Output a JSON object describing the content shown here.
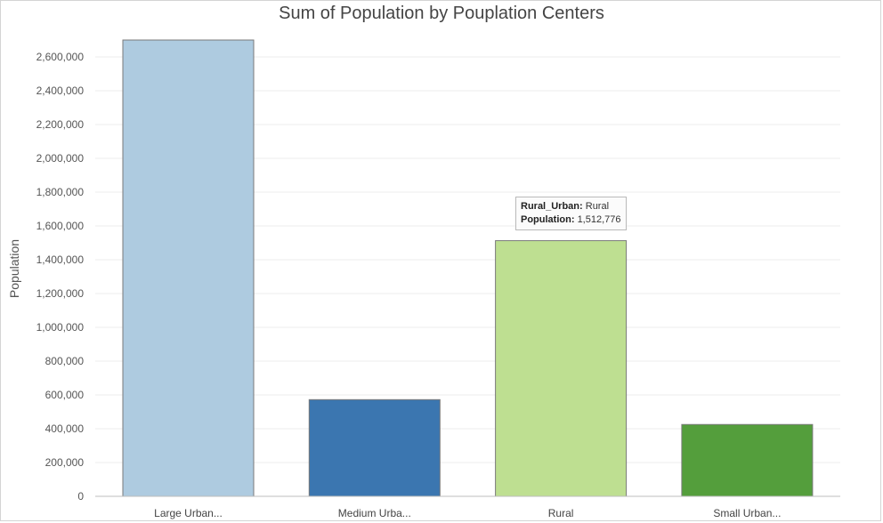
{
  "chart_data": {
    "type": "bar",
    "title": "Sum of Population by Pouplation Centers",
    "xlabel": "",
    "ylabel": "Population",
    "categories": [
      "Large Urban...",
      "Medium Urba...",
      "Rural",
      "Small Urban..."
    ],
    "values": [
      2700000,
      572000,
      1512776,
      425000
    ],
    "colors": [
      "#aecbe0",
      "#3b76b0",
      "#bedf91",
      "#549e3c"
    ],
    "ylim": [
      0,
      2700000
    ],
    "yticks": [
      0,
      200000,
      400000,
      600000,
      800000,
      1000000,
      1200000,
      1400000,
      1600000,
      1800000,
      2000000,
      2200000,
      2400000,
      2600000
    ],
    "ytick_labels": [
      "0",
      "200,000",
      "400,000",
      "600,000",
      "800,000",
      "1,000,000",
      "1,200,000",
      "1,400,000",
      "1,600,000",
      "1,800,000",
      "2,000,000",
      "2,200,000",
      "2,400,000",
      "2,600,000"
    ],
    "grid": true,
    "legend": "none"
  },
  "tooltip": {
    "field_label": "Rural_Urban:",
    "field_value": "Rural",
    "pop_label": "Population:",
    "pop_value": "1,512,776"
  }
}
